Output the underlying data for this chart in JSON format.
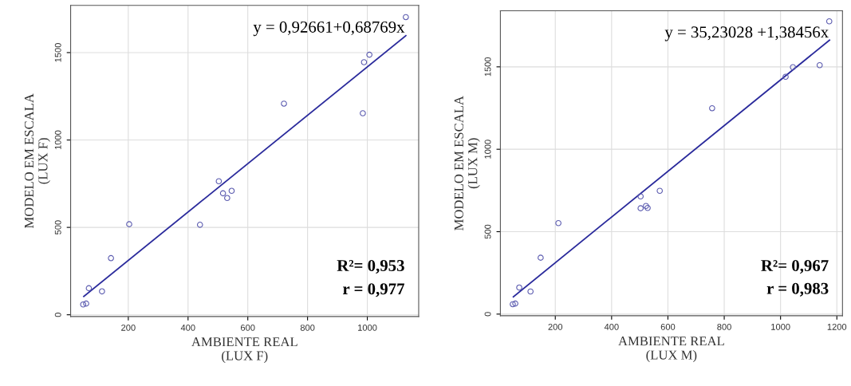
{
  "chart_data": [
    {
      "type": "scatter",
      "xlabel": "AMBIENTE REAL\n(LUX F)",
      "ylabel": "MODELO EM ESCALA\n(LUX F)",
      "xlim": [
        7,
        1172
      ],
      "ylim": [
        -10,
        1770
      ],
      "xticks": [
        200,
        400,
        600,
        800,
        1000
      ],
      "yticks": [
        0,
        500,
        1000,
        1500
      ],
      "grid": true,
      "annotations": [
        "y = 0,92661+0,68769x",
        "R²= 0,953",
        "r = 0,977"
      ],
      "series": [
        {
          "marker": "circle",
          "color": "#5c5cb0",
          "x": [
            1129,
            1007,
            989,
            985,
            721,
            503,
            517,
            546,
            531,
            440,
            203,
            142,
            68,
            112,
            59,
            49
          ],
          "values": [
            1703,
            1488,
            1445,
            1153,
            1208,
            764,
            695,
            709,
            668,
            515,
            518,
            324,
            152,
            134,
            64,
            59
          ]
        },
        {
          "type": "line",
          "color": "#2b2b9c",
          "x": [
            51,
            1129
          ],
          "values": [
            105,
            1597
          ]
        }
      ]
    },
    {
      "type": "scatter",
      "xlabel": "AMBIENTE REAL\n(LUX M)",
      "ylabel": "MODELO EM ESCALA\n(LUX M)",
      "xlim": [
        5,
        1220
      ],
      "ylim": [
        -10,
        1840
      ],
      "xticks": [
        200,
        400,
        600,
        800,
        1000,
        1200
      ],
      "yticks": [
        0,
        500,
        1000,
        1500
      ],
      "grid": true,
      "annotations": [
        "y = 35,23028 +1,38456x",
        "R²= 0,967",
        "r = 0,983"
      ],
      "series": [
        {
          "marker": "circle",
          "color": "#5c5cb0",
          "x": [
            1173,
            1139,
            1044,
            1018,
            757,
            571,
            503,
            503,
            522,
            528,
            211,
            148,
            72,
            112,
            58,
            49
          ],
          "values": [
            1776,
            1510,
            1498,
            1440,
            1249,
            748,
            714,
            642,
            656,
            644,
            552,
            342,
            161,
            137,
            64,
            60
          ]
        },
        {
          "type": "line",
          "color": "#2b2b9c",
          "x": [
            51,
            1174
          ],
          "values": [
            105,
            1662
          ]
        }
      ]
    }
  ]
}
